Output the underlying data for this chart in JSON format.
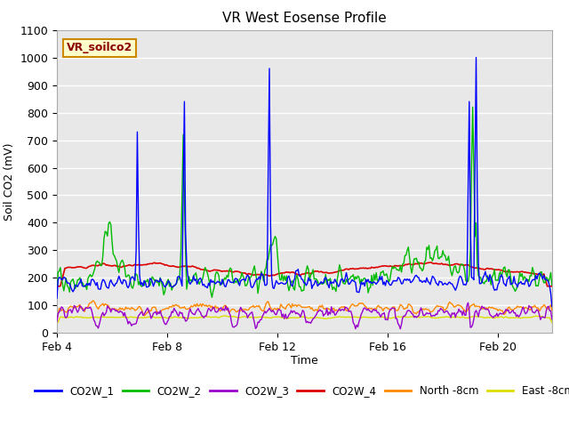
{
  "title": "VR West Eosense Profile",
  "ylabel": "Soil CO2 (mV)",
  "xlabel": "Time",
  "annotation": "VR_soilco2",
  "ylim": [
    0,
    1100
  ],
  "plot_bg_color": "#e8e8e8",
  "fig_bg_color": "#ffffff",
  "grid_color": "#ffffff",
  "series_colors": {
    "CO2W_1": "#0000ff",
    "CO2W_2": "#00bb00",
    "CO2W_3": "#9900cc",
    "CO2W_4": "#dd0000",
    "North_8cm": "#ff8800",
    "East_8cm": "#dddd00"
  },
  "xtick_labels": [
    "Feb 4",
    "Feb 8",
    "Feb 12",
    "Feb 16",
    "Feb 20"
  ],
  "xtick_positions": [
    0,
    96,
    192,
    288,
    384
  ],
  "n_points": 432,
  "seed": 42
}
